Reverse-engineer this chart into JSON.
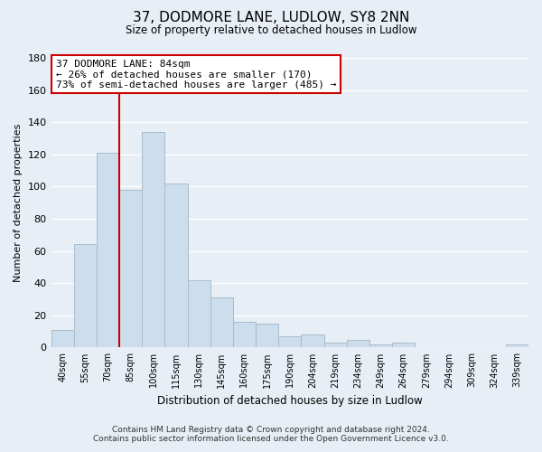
{
  "title": "37, DODMORE LANE, LUDLOW, SY8 2NN",
  "subtitle": "Size of property relative to detached houses in Ludlow",
  "xlabel": "Distribution of detached houses by size in Ludlow",
  "ylabel": "Number of detached properties",
  "bar_labels": [
    "40sqm",
    "55sqm",
    "70sqm",
    "85sqm",
    "100sqm",
    "115sqm",
    "130sqm",
    "145sqm",
    "160sqm",
    "175sqm",
    "190sqm",
    "204sqm",
    "219sqm",
    "234sqm",
    "249sqm",
    "264sqm",
    "279sqm",
    "294sqm",
    "309sqm",
    "324sqm",
    "339sqm"
  ],
  "bar_values": [
    11,
    64,
    121,
    98,
    134,
    102,
    42,
    31,
    16,
    15,
    7,
    8,
    3,
    5,
    2,
    3,
    0,
    0,
    0,
    0,
    2
  ],
  "bar_color": "#ccdded",
  "bar_edge_color": "#aabccc",
  "ylim": [
    0,
    180
  ],
  "yticks": [
    0,
    20,
    40,
    60,
    80,
    100,
    120,
    140,
    160,
    180
  ],
  "property_line_color": "#cc0000",
  "annotation_title": "37 DODMORE LANE: 84sqm",
  "annotation_line1": "← 26% of detached houses are smaller (170)",
  "annotation_line2": "73% of semi-detached houses are larger (485) →",
  "annotation_box_color": "#ffffff",
  "annotation_box_edge": "#cc0000",
  "footer_line1": "Contains HM Land Registry data © Crown copyright and database right 2024.",
  "footer_line2": "Contains public sector information licensed under the Open Government Licence v3.0.",
  "bg_color": "#e8eef5",
  "plot_bg_color": "#e8eef5"
}
